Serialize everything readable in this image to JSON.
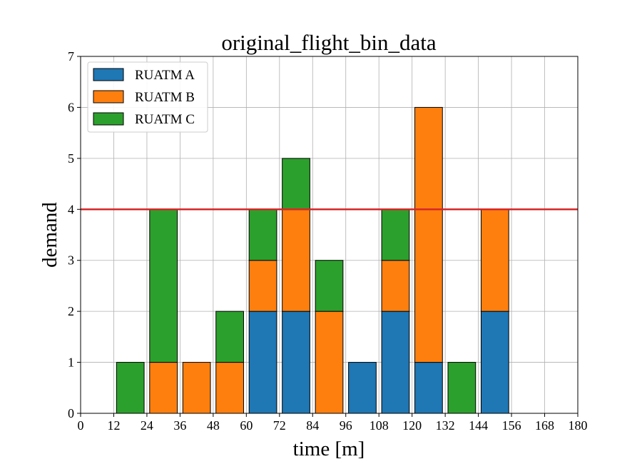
{
  "chart_data": {
    "type": "bar",
    "stacked": true,
    "title": "original_flight_bin_data",
    "xlabel": "time [m]",
    "ylabel": "demand",
    "xlim": [
      0,
      180
    ],
    "ylim": [
      0,
      7
    ],
    "bin_width": 12,
    "x_ticks": [
      "0",
      "12",
      "24",
      "36",
      "48",
      "60",
      "72",
      "84",
      "96",
      "108",
      "120",
      "132",
      "144",
      "156",
      "168",
      "180"
    ],
    "y_ticks": [
      "0",
      "1",
      "2",
      "3",
      "4",
      "5",
      "6",
      "7"
    ],
    "grid": true,
    "legend_position": "top-left",
    "bin_starts": [
      0,
      12,
      24,
      36,
      48,
      60,
      72,
      84,
      96,
      108,
      120,
      132,
      144,
      156,
      168
    ],
    "series": [
      {
        "name": "RUATM A",
        "color": "#1f77b4",
        "values": [
          0,
          0,
          0,
          0,
          0,
          2,
          2,
          0,
          1,
          2,
          1,
          0,
          2,
          0,
          0
        ]
      },
      {
        "name": "RUATM B",
        "color": "#ff7f0e",
        "values": [
          0,
          0,
          1,
          1,
          1,
          1,
          2,
          2,
          0,
          1,
          5,
          0,
          2,
          0,
          0
        ]
      },
      {
        "name": "RUATM C",
        "color": "#2ca02c",
        "values": [
          0,
          1,
          3,
          0,
          1,
          1,
          1,
          1,
          0,
          1,
          0,
          1,
          0,
          0,
          0
        ]
      }
    ],
    "threshold": {
      "value": 4,
      "color": "#d62728"
    }
  }
}
